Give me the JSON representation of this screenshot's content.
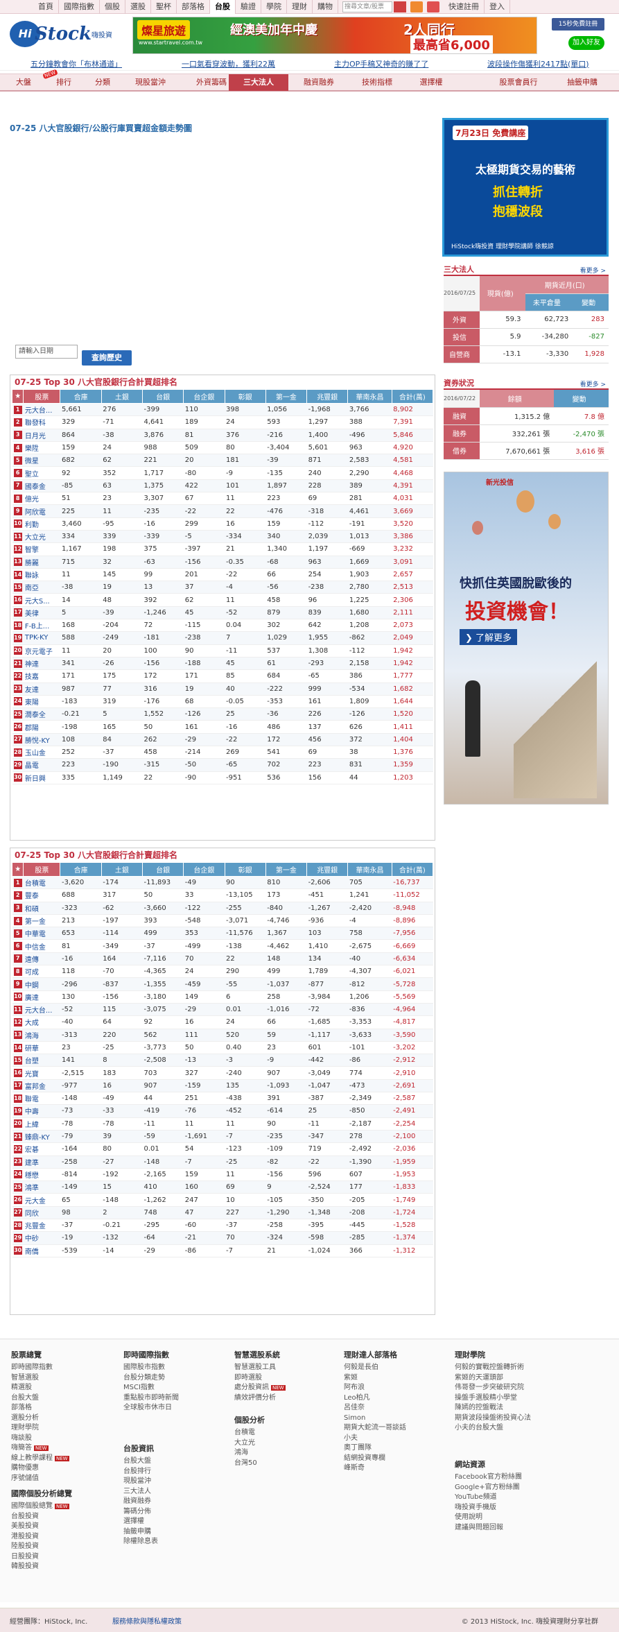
{
  "topnav": {
    "items": [
      "首頁",
      "國際指數",
      "個股",
      "選股",
      "聖杯",
      "部落格",
      "台股",
      "驗證",
      "學院",
      "理財",
      "購物"
    ],
    "selected": "台股",
    "search_placeholder": "搜尋文章/股票",
    "signup": "快速註冊",
    "login": "登入"
  },
  "header": {
    "logo_hi": "Hi",
    "logo_stock": "Stock",
    "logo_sub": "嗨投資",
    "banner": {
      "brand": "燦星旅遊",
      "site": "www.startravel.com.tw",
      "promo": "經澳美加年中慶",
      "deal": "2人同行",
      "price": "最高省6,000"
    },
    "fb_label": "15秒免費註冊",
    "line_label": "加入好友"
  },
  "ticker": [
    "五分鐘教會你「布林通道」",
    "一口氣看穿波動，獲利22萬",
    "主力OP手稿又神奇的賺了了",
    "波段操作傷獲利2417點(單口)"
  ],
  "mainnav": {
    "items": [
      "大盤",
      "排行",
      "分類",
      "現股當沖",
      "外資籌碼",
      "三大法人",
      "融資融券",
      "技術指標",
      "選擇權",
      "股票會員行",
      "抽籤申購"
    ],
    "selected": "三大法人",
    "hot": "NEW"
  },
  "chart_section": {
    "title": "07-25 八大官股銀行/公股行庫買賣超金額走勢圖",
    "date_placeholder": "請輸入日期",
    "query_button": "查詢歷史"
  },
  "buy_table": {
    "title": "07-25 Top 30 八大官股銀行合計買超排名",
    "headers": [
      "★",
      "股票",
      "合庫",
      "土銀",
      "台銀",
      "台企銀",
      "彰銀",
      "第一金",
      "兆豐銀",
      "華南永昌",
      "合計(萬)"
    ],
    "rows": [
      [
        "1",
        "元大台...",
        "5,661",
        "276",
        "-399",
        "110",
        "398",
        "1,056",
        "-1,968",
        "3,766",
        "8,902"
      ],
      [
        "2",
        "聯發科",
        "329",
        "-71",
        "4,641",
        "189",
        "24",
        "593",
        "1,297",
        "388",
        "7,391"
      ],
      [
        "3",
        "日月光",
        "864",
        "-38",
        "3,876",
        "81",
        "376",
        "-216",
        "1,400",
        "-496",
        "5,846"
      ],
      [
        "4",
        "樂陞",
        "159",
        "24",
        "988",
        "509",
        "80",
        "-3,404",
        "5,601",
        "963",
        "4,920"
      ],
      [
        "5",
        "微星",
        "682",
        "62",
        "221",
        "20",
        "181",
        "-39",
        "871",
        "2,583",
        "4,581"
      ],
      [
        "6",
        "聖立",
        "92",
        "352",
        "1,717",
        "-80",
        "-9",
        "-135",
        "240",
        "2,290",
        "4,468"
      ],
      [
        "7",
        "國泰金",
        "-85",
        "63",
        "1,375",
        "422",
        "101",
        "1,897",
        "228",
        "389",
        "4,391"
      ],
      [
        "8",
        "億光",
        "51",
        "23",
        "3,307",
        "67",
        "11",
        "223",
        "69",
        "281",
        "4,031"
      ],
      [
        "9",
        "阿欣電",
        "225",
        "11",
        "-235",
        "-22",
        "22",
        "-476",
        "-318",
        "4,461",
        "3,669"
      ],
      [
        "10",
        "利勤",
        "3,460",
        "-95",
        "-16",
        "299",
        "16",
        "159",
        "-112",
        "-191",
        "3,520"
      ],
      [
        "11",
        "大立光",
        "334",
        "339",
        "-339",
        "-5",
        "-334",
        "340",
        "2,039",
        "1,013",
        "3,386"
      ],
      [
        "12",
        "智擎",
        "1,167",
        "198",
        "375",
        "-397",
        "21",
        "1,340",
        "1,197",
        "-669",
        "3,232"
      ],
      [
        "13",
        "勝麗",
        "715",
        "32",
        "-63",
        "-156",
        "-0.35",
        "-68",
        "963",
        "1,669",
        "3,091"
      ],
      [
        "14",
        "聯詠",
        "11",
        "145",
        "99",
        "201",
        "-22",
        "66",
        "254",
        "1,903",
        "2,657"
      ],
      [
        "15",
        "南亞",
        "-38",
        "19",
        "13",
        "37",
        "-4",
        "-56",
        "-238",
        "2,780",
        "2,513"
      ],
      [
        "16",
        "元大S...",
        "14",
        "48",
        "392",
        "62",
        "11",
        "458",
        "96",
        "1,225",
        "2,306"
      ],
      [
        "17",
        "美律",
        "5",
        "-39",
        "-1,246",
        "45",
        "-52",
        "879",
        "839",
        "1,680",
        "2,111"
      ],
      [
        "18",
        "F-B上...",
        "168",
        "-204",
        "72",
        "-115",
        "0.04",
        "302",
        "642",
        "1,208",
        "2,073"
      ],
      [
        "19",
        "TPK-KY",
        "588",
        "-249",
        "-181",
        "-238",
        "7",
        "1,029",
        "1,955",
        "-862",
        "2,049"
      ],
      [
        "20",
        "京元電子",
        "11",
        "20",
        "100",
        "90",
        "-11",
        "537",
        "1,308",
        "-112",
        "1,942"
      ],
      [
        "21",
        "神達",
        "341",
        "-26",
        "-156",
        "-188",
        "45",
        "61",
        "-293",
        "2,158",
        "1,942"
      ],
      [
        "22",
        "技嘉",
        "171",
        "175",
        "172",
        "171",
        "85",
        "684",
        "-65",
        "386",
        "1,777"
      ],
      [
        "23",
        "友達",
        "987",
        "77",
        "316",
        "19",
        "40",
        "-222",
        "999",
        "-534",
        "1,682"
      ],
      [
        "24",
        "東陽",
        "-183",
        "319",
        "-176",
        "68",
        "-0.05",
        "-353",
        "161",
        "1,809",
        "1,644"
      ],
      [
        "25",
        "潤泰全",
        "-0.21",
        "5",
        "1,552",
        "-126",
        "25",
        "-36",
        "226",
        "-126",
        "1,520"
      ],
      [
        "26",
        "郡陽",
        "-198",
        "165",
        "50",
        "161",
        "-16",
        "486",
        "137",
        "626",
        "1,411"
      ],
      [
        "27",
        "勝悅-KY",
        "108",
        "84",
        "262",
        "-29",
        "-22",
        "172",
        "456",
        "372",
        "1,404"
      ],
      [
        "28",
        "玉山金",
        "252",
        "-37",
        "458",
        "-214",
        "269",
        "541",
        "69",
        "38",
        "1,376"
      ],
      [
        "29",
        "晶電",
        "223",
        "-190",
        "-315",
        "-50",
        "-65",
        "702",
        "223",
        "831",
        "1,359"
      ],
      [
        "30",
        "新日興",
        "335",
        "1,149",
        "22",
        "-90",
        "-951",
        "536",
        "156",
        "44",
        "1,203"
      ]
    ]
  },
  "sell_table": {
    "title": "07-25 Top 30 八大官股銀行合計賣超排名",
    "headers": [
      "★",
      "股票",
      "合庫",
      "土銀",
      "台銀",
      "台企銀",
      "彰銀",
      "第一金",
      "兆豐銀",
      "華南永昌",
      "合計(萬)"
    ],
    "rows": [
      [
        "1",
        "台積電",
        "-3,620",
        "-174",
        "-11,893",
        "-49",
        "90",
        "810",
        "-2,606",
        "705",
        "-16,737"
      ],
      [
        "2",
        "豐泰",
        "688",
        "317",
        "50",
        "33",
        "-13,105",
        "173",
        "-451",
        "1,241",
        "-11,052"
      ],
      [
        "3",
        "和碩",
        "-323",
        "-62",
        "-3,660",
        "-122",
        "-255",
        "-840",
        "-1,267",
        "-2,420",
        "-8,948"
      ],
      [
        "4",
        "第一金",
        "213",
        "-197",
        "393",
        "-548",
        "-3,071",
        "-4,746",
        "-936",
        "-4",
        "-8,896"
      ],
      [
        "5",
        "中華電",
        "653",
        "-114",
        "499",
        "353",
        "-11,576",
        "1,367",
        "103",
        "758",
        "-7,956"
      ],
      [
        "6",
        "中信金",
        "81",
        "-349",
        "-37",
        "-499",
        "-138",
        "-4,462",
        "1,410",
        "-2,675",
        "-6,669"
      ],
      [
        "7",
        "遠傳",
        "-16",
        "164",
        "-7,116",
        "70",
        "22",
        "148",
        "134",
        "-40",
        "-6,634"
      ],
      [
        "8",
        "可成",
        "118",
        "-70",
        "-4,365",
        "24",
        "290",
        "499",
        "1,789",
        "-4,307",
        "-6,021"
      ],
      [
        "9",
        "中鋼",
        "-296",
        "-837",
        "-1,355",
        "-459",
        "-55",
        "-1,037",
        "-877",
        "-812",
        "-5,728"
      ],
      [
        "10",
        "廣達",
        "130",
        "-156",
        "-3,180",
        "149",
        "6",
        "258",
        "-3,984",
        "1,206",
        "-5,569"
      ],
      [
        "11",
        "元大台...",
        "-52",
        "115",
        "-3,075",
        "-29",
        "0.01",
        "-1,016",
        "-72",
        "-836",
        "-4,964"
      ],
      [
        "12",
        "大成",
        "-40",
        "64",
        "92",
        "16",
        "24",
        "66",
        "-1,685",
        "-3,353",
        "-4,817"
      ],
      [
        "13",
        "鴻海",
        "-313",
        "220",
        "562",
        "111",
        "520",
        "59",
        "-1,117",
        "-3,633",
        "-3,590"
      ],
      [
        "14",
        "研華",
        "23",
        "-25",
        "-3,773",
        "50",
        "0.40",
        "23",
        "601",
        "-101",
        "-3,202"
      ],
      [
        "15",
        "台塑",
        "141",
        "8",
        "-2,508",
        "-13",
        "-3",
        "-9",
        "-442",
        "-86",
        "-2,912"
      ],
      [
        "16",
        "光寶",
        "-2,515",
        "183",
        "703",
        "327",
        "-240",
        "907",
        "-3,049",
        "774",
        "-2,910"
      ],
      [
        "17",
        "富邦金",
        "-977",
        "16",
        "907",
        "-159",
        "135",
        "-1,093",
        "-1,047",
        "-473",
        "-2,691"
      ],
      [
        "18",
        "聯電",
        "-148",
        "-49",
        "44",
        "251",
        "-438",
        "391",
        "-387",
        "-2,349",
        "-2,587"
      ],
      [
        "19",
        "中壽",
        "-73",
        "-33",
        "-419",
        "-76",
        "-452",
        "-614",
        "25",
        "-850",
        "-2,491"
      ],
      [
        "20",
        "上緯",
        "-78",
        "-78",
        "-11",
        "11",
        "11",
        "90",
        "-11",
        "-2,187",
        "-2,254"
      ],
      [
        "21",
        "臻鼎-KY",
        "-79",
        "39",
        "-59",
        "-1,691",
        "-7",
        "-235",
        "-347",
        "278",
        "-2,100"
      ],
      [
        "22",
        "宏碁",
        "-164",
        "80",
        "0.01",
        "54",
        "-123",
        "-109",
        "719",
        "-2,492",
        "-2,036"
      ],
      [
        "23",
        "建準",
        "-258",
        "-27",
        "-148",
        "-7",
        "-25",
        "-82",
        "-22",
        "-1,390",
        "-1,959"
      ],
      [
        "24",
        "穩懋",
        "-814",
        "-192",
        "-2,165",
        "159",
        "11",
        "-156",
        "596",
        "607",
        "-1,953"
      ],
      [
        "25",
        "鴻準",
        "-149",
        "15",
        "410",
        "160",
        "69",
        "9",
        "-2,524",
        "177",
        "-1,833"
      ],
      [
        "26",
        "元大金",
        "65",
        "-148",
        "-1,262",
        "247",
        "10",
        "-105",
        "-350",
        "-205",
        "-1,749"
      ],
      [
        "27",
        "同欣",
        "98",
        "2",
        "748",
        "47",
        "227",
        "-1,290",
        "-1,348",
        "-208",
        "-1,724"
      ],
      [
        "28",
        "兆豐金",
        "-37",
        "-0.21",
        "-295",
        "-60",
        "-37",
        "-258",
        "-395",
        "-445",
        "-1,528"
      ],
      [
        "29",
        "中砂",
        "-19",
        "-132",
        "-64",
        "-21",
        "70",
        "-324",
        "-598",
        "-285",
        "-1,374"
      ],
      [
        "30",
        "南僑",
        "-539",
        "-14",
        "-29",
        "-86",
        "-7",
        "21",
        "-1,024",
        "366",
        "-1,312"
      ]
    ]
  },
  "side_ad1": {
    "date": "7月23日 免費講座",
    "line1": "太極期貨交易的藝術",
    "line2": "抓住轉折",
    "line3": "抱穩波段",
    "footer": "HiStock嗨投資 理財學院講師 徐競諒"
  },
  "institutional": {
    "title": "三大法人",
    "more": "看更多 >",
    "date": "2016/07/25",
    "col_cash": "現貨(億)",
    "col_fut": "期貨近月(口)",
    "col_oi": "未平倉量",
    "col_chg": "變動",
    "rows": [
      {
        "label": "外資",
        "cash": "59.3",
        "oi": "62,723",
        "chg": "283"
      },
      {
        "label": "投信",
        "cash": "5.9",
        "oi": "-34,280",
        "chg": "-827"
      },
      {
        "label": "自營商",
        "cash": "-13.1",
        "oi": "-3,330",
        "chg": "1,928"
      }
    ]
  },
  "margin": {
    "title": "資券狀況",
    "more": "看更多 >",
    "date": "2016/07/22",
    "col_bal": "餘額",
    "col_chg": "變動",
    "rows": [
      {
        "label": "融資",
        "bal": "1,315.2 億",
        "chg": "7.8 億"
      },
      {
        "label": "融券",
        "bal": "332,261 張",
        "chg": "-2,470 張"
      },
      {
        "label": "借券",
        "bal": "7,670,661 張",
        "chg": "3,616 張"
      }
    ]
  },
  "side_ad2": {
    "brand": "新光投信",
    "line1": "快抓住英國脫歐後的",
    "line2": "投資機會！",
    "cta": "了解更多"
  },
  "footer": {
    "cols": [
      {
        "head": "股票總覽",
        "items": [
          "即時國際指數",
          "智慧選股",
          "精選股",
          "台股大盤",
          "部落格",
          "選股分析",
          "理財學院",
          "嗨談股",
          "嗨簡答",
          "線上教學課程",
          "購物優惠",
          "序號儲值"
        ],
        "new": [
          "嗨簡答",
          "線上教學課程"
        ]
      },
      {
        "head": "即時國際指數",
        "items": [
          "國際股市指數",
          "台股分類走勢",
          "MSCI指數",
          "重點股市即時新聞",
          "全球股市休市日"
        ]
      },
      {
        "head": "台股資訊",
        "items": [
          "台股大盤",
          "台股排行",
          "現股當沖",
          "三大法人",
          "融資融券",
          "籌碼分佈",
          "選擇權",
          "抽籤申購",
          "除權除息表"
        ]
      },
      {
        "head": "智慧選股系統",
        "items": [
          "智慧選股工具",
          "即時選股",
          "處分股資訊",
          "績效評價分析"
        ],
        "new": [
          "處分股資訊"
        ]
      },
      {
        "head": "個股分析",
        "items": [
          "台積電",
          "大立光",
          "鴻海",
          "台灣50"
        ]
      },
      {
        "head": "理財達人部落格",
        "items": [
          "何毅是長伯",
          "紫姬",
          "阿布浪",
          "Leo柏凡",
          "呂佳奈",
          "Simon",
          "期貨大蛇流一哥談話",
          "小夫",
          "奧丁團隊",
          "結網投資專欄",
          "峰斯奇"
        ]
      },
      {
        "head": "理財學院",
        "items": [
          "何毅的實戰控盤轉折術",
          "紫姬的天運頭部",
          "伟哥發一步突破研究院",
          "操盤手選股精小學堂",
          "陳嫣的控盤戰法",
          "期貨波段操盤術投資心法",
          "小夫的台股大盤"
        ]
      },
      {
        "head": "網站資源",
        "items": [
          "Facebook官方粉絲團",
          "Google+官方粉絲團",
          "YouTube頻道",
          "嗨投資手機版",
          "使用說明",
          "建議與問題回報"
        ]
      }
    ],
    "groups": [
      {
        "head": "國際個股分析總覽",
        "items": [
          "國際個股總覽",
          "台股投資",
          "美股投資",
          "港股投資",
          "陸股投資",
          "日股投資",
          "韓股投資"
        ],
        "new": [
          "國際個股總覽"
        ]
      }
    ]
  },
  "copy": {
    "left": "經營團隊：HiStock, Inc.",
    "mid": "服務條款與隱私權政策",
    "right": "© 2013 HiStock, Inc. 嗨投資理財分享社群"
  },
  "colors": {
    "accent": "#c0242f",
    "blue": "#5b9bc5",
    "pink": "#c95b66"
  }
}
